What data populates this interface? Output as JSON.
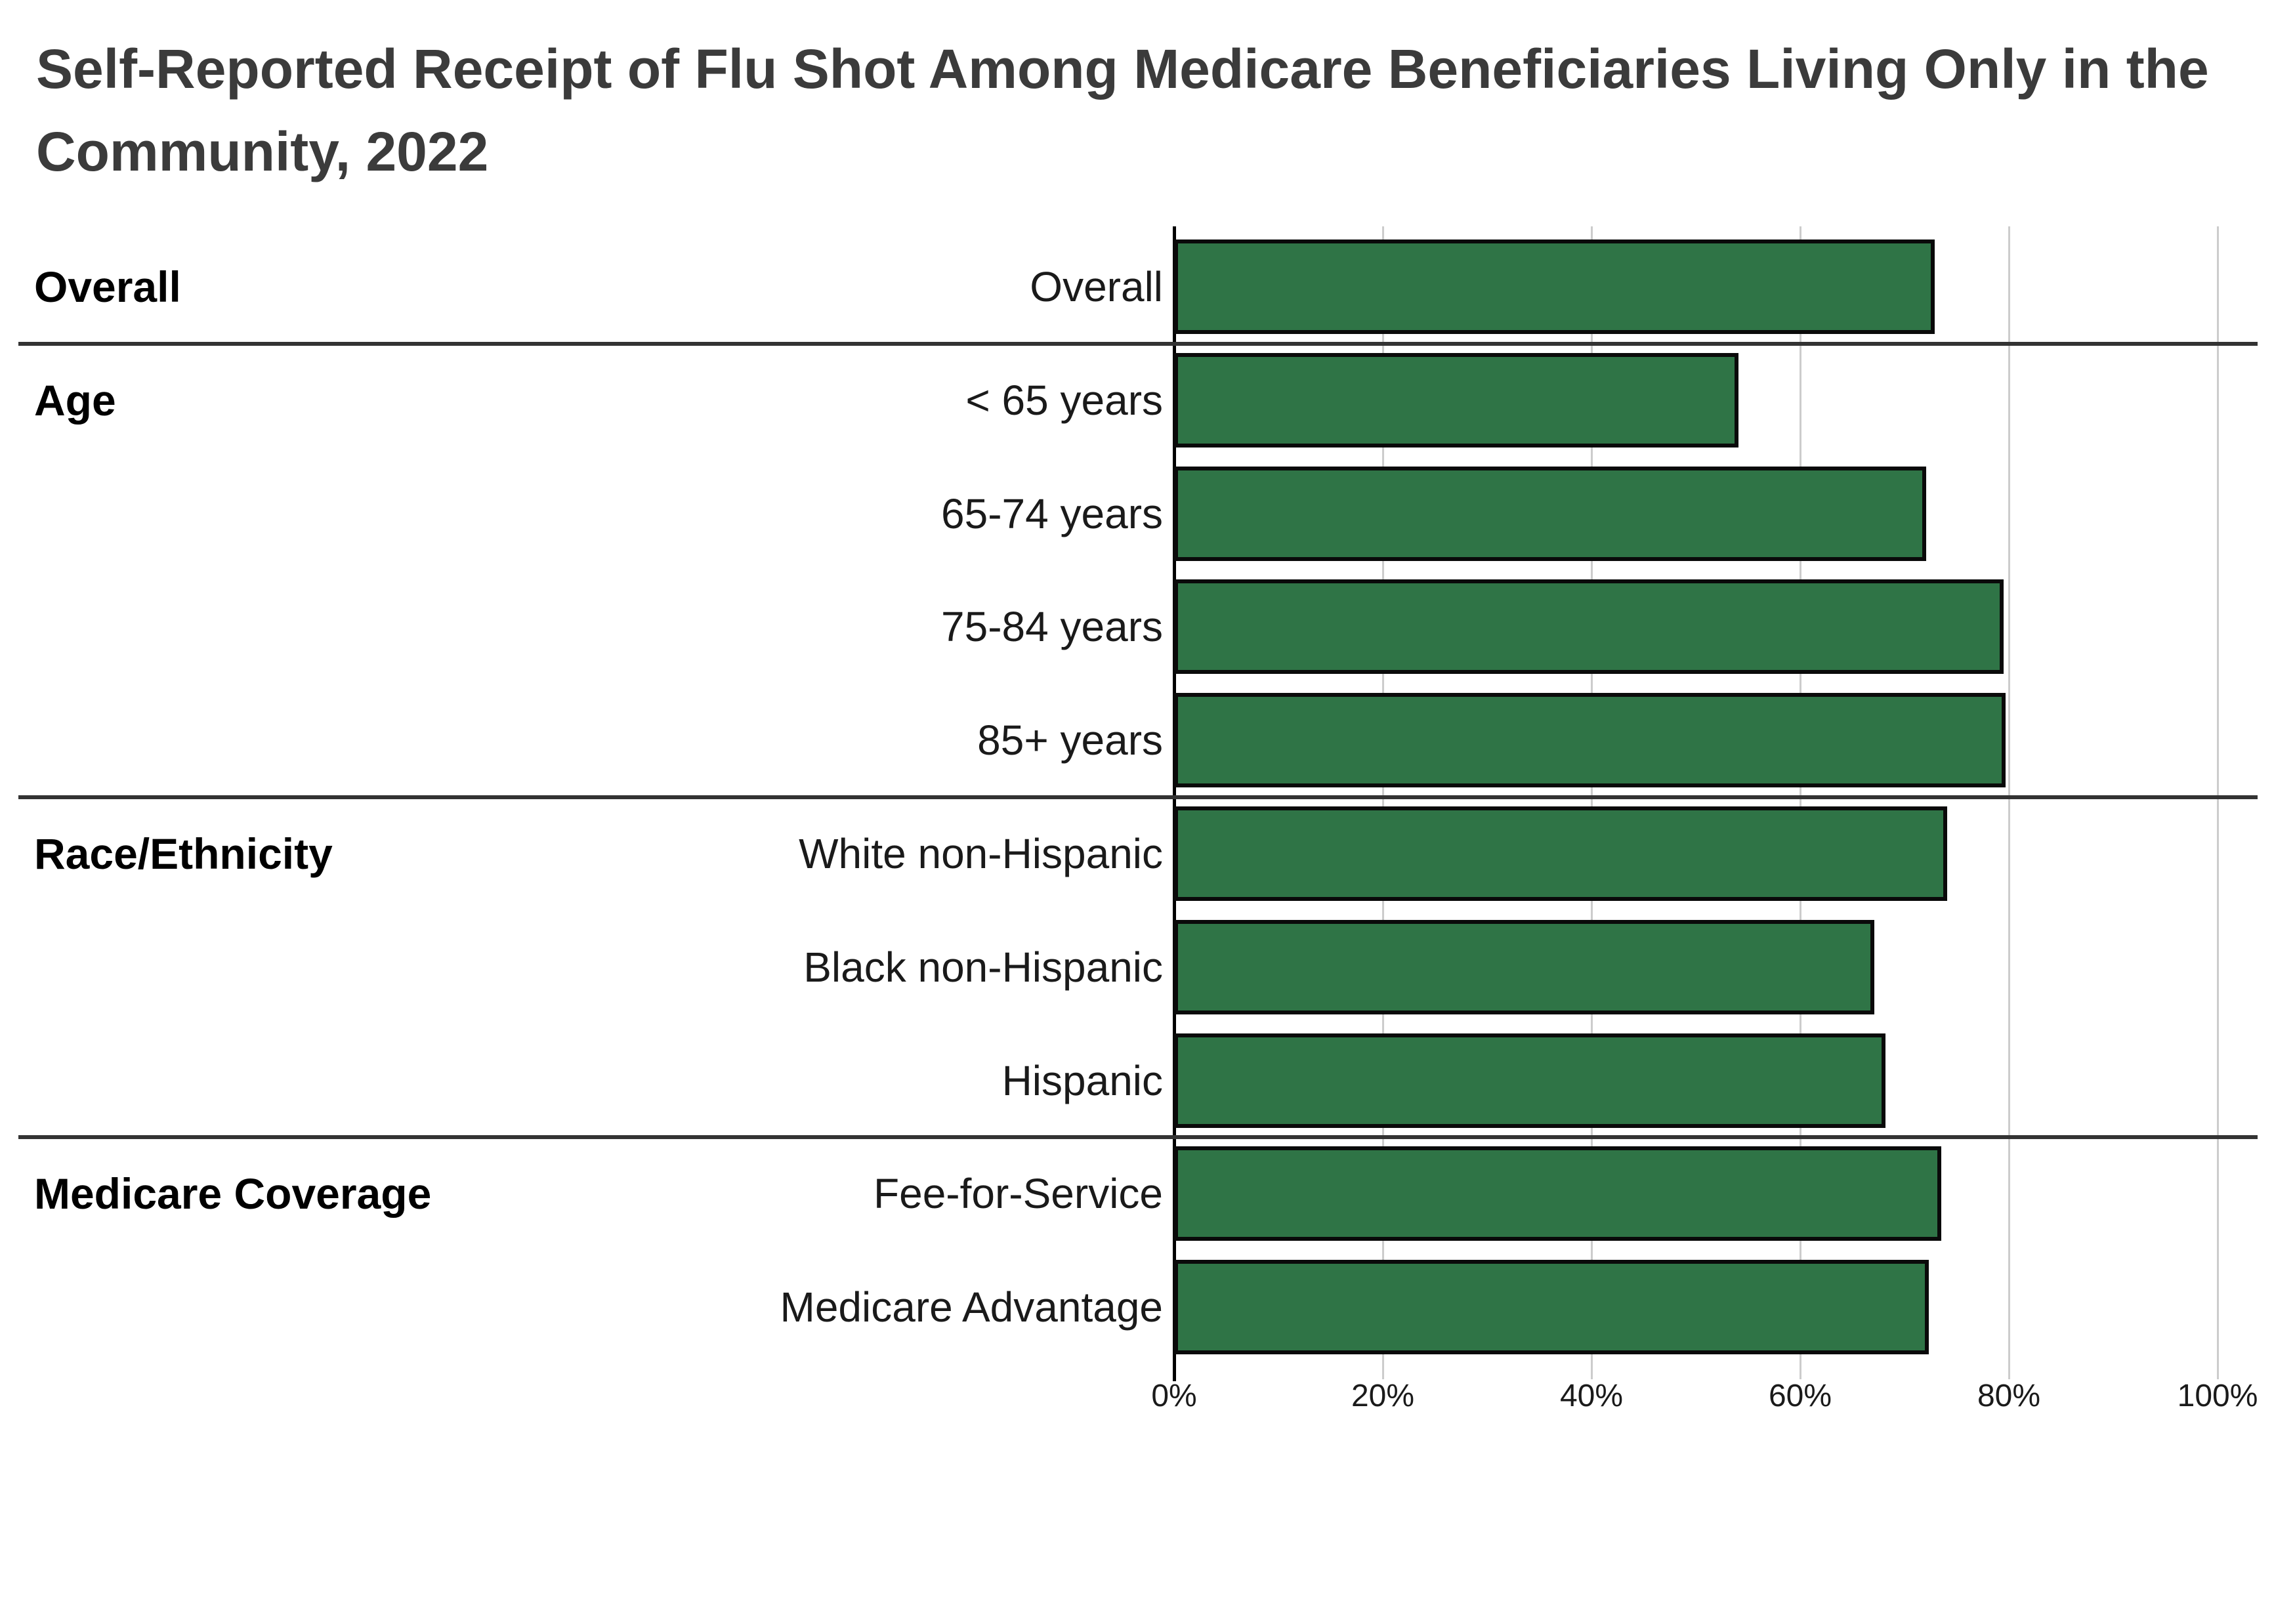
{
  "title": "Self-Reported Receipt of Flu Shot Among Medicare Beneficiaries Living Only in the Community, 2022",
  "title_lines": [
    "Self-Reported Receipt of Flu Shot Among Medicare Beneficiaries Living Only in the",
    "Community, 2022"
  ],
  "colors": {
    "bar_fill": "#2f7446",
    "bar_border": "#0a0a0a",
    "axis_line": "#000000",
    "gridline": "#cccccc",
    "separator": "#333333",
    "title_text": "#3b3b3b",
    "label_text": "#1a1a1a"
  },
  "chart_data": {
    "type": "bar",
    "orientation": "horizontal",
    "title": "Self-Reported Receipt of Flu Shot Among Medicare Beneficiaries Living Only in the Community, 2022",
    "xlabel": "",
    "ylabel": "",
    "xlim": [
      0,
      100
    ],
    "grid": true,
    "x_axis_ticks": [
      {
        "label": "0%",
        "value": 0
      },
      {
        "label": "20%",
        "value": 20
      },
      {
        "label": "40%",
        "value": 40
      },
      {
        "label": "60%",
        "value": 60
      },
      {
        "label": "80%",
        "value": 80
      },
      {
        "label": "100%",
        "value": 100
      }
    ],
    "groups": [
      {
        "label": "Overall",
        "rows": [
          {
            "label": "Overall",
            "value": 72.9
          }
        ]
      },
      {
        "label": "Age",
        "rows": [
          {
            "label": "< 65 years",
            "value": 54.1
          },
          {
            "label": "65-74 years",
            "value": 72.1
          },
          {
            "label": "75-84 years",
            "value": 79.5
          },
          {
            "label": "85+ years",
            "value": 79.7
          }
        ]
      },
      {
        "label": "Race/Ethnicity",
        "rows": [
          {
            "label": "White non-Hispanic",
            "value": 74.1
          },
          {
            "label": "Black non-Hispanic",
            "value": 67.1
          },
          {
            "label": "Hispanic",
            "value": 68.2
          }
        ]
      },
      {
        "label": "Medicare Coverage",
        "rows": [
          {
            "label": "Fee-for-Service",
            "value": 73.5
          },
          {
            "label": "Medicare Advantage",
            "value": 72.3
          }
        ]
      }
    ]
  }
}
